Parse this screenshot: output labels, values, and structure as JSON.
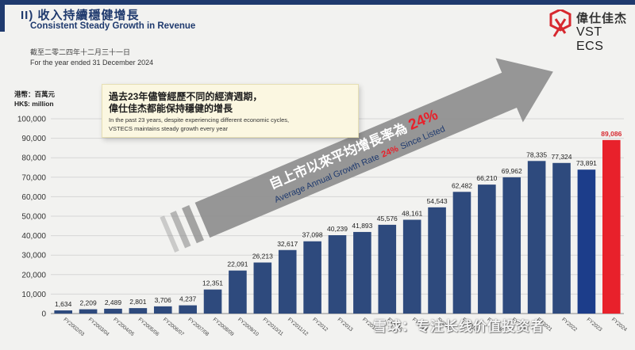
{
  "header": {
    "title_zh": "II) 收入持續穩健增長",
    "title_en": "Consistent Steady Growth in Revenue",
    "period_zh": "截至二零二四年十二月三十一日",
    "period_en": "For the year ended 31 December 2024",
    "unit_zh": "港幣：百萬元",
    "unit_en": "HK$: million"
  },
  "logo": {
    "name_zh": "偉仕佳杰",
    "name_en": "VST ECS"
  },
  "callout": {
    "zh_line1": "過去23年儘管經歷不同的經濟週期，",
    "zh_line2": "偉仕佳杰都能保持穩健的增長",
    "en_line1": "In the past 23 years, despite experiencing different economic cycles,",
    "en_line2": "VSTECS maintains steady growth every year"
  },
  "arrow": {
    "zh_prefix": "自上市以來平均增長率為",
    "zh_rate": "24%",
    "en_prefix": "Average Annual Growth Rate",
    "en_rate": "24%",
    "en_suffix": "Since Listed"
  },
  "watermark": "雪球：专注长线价值投资者",
  "colors": {
    "bar": "#2e4a7d",
    "highlight": "#1c3d8a",
    "latest": "#e8212b",
    "latest_label": "#d7282f",
    "rate": "#e8212b"
  },
  "chart_data": {
    "type": "bar",
    "ylim": [
      0,
      100000
    ],
    "yticks": [
      "0",
      "10,000",
      "20,000",
      "30,000",
      "40,000",
      "50,000",
      "60,000",
      "70,000",
      "80,000",
      "90,000",
      "100,000"
    ],
    "categories": [
      "FY2002/03",
      "FY2003/04",
      "FY2004/05",
      "FY2005/06",
      "FY2006/07",
      "FY2007/08",
      "FY2008/09",
      "FY2009/10",
      "FY2010/11",
      "FY2011/12",
      "FY2012",
      "FY2013",
      "FY2014",
      "FY2015",
      "FY2016",
      "FY2017",
      "FY2018",
      "FY2019",
      "FY2020",
      "FY2021",
      "FY2022",
      "FY2023",
      "FY2024"
    ],
    "values": [
      1634,
      2209,
      2489,
      2801,
      3706,
      4237,
      12351,
      22091,
      26213,
      32617,
      37098,
      40239,
      41893,
      45576,
      48161,
      54543,
      62482,
      66210,
      69962,
      78335,
      77324,
      73891,
      89086
    ],
    "value_labels": [
      "1,634",
      "2,209",
      "2,489",
      "2,801",
      "3,706",
      "4,237",
      "12,351",
      "22,091",
      "26,213",
      "32,617",
      "37,098",
      "40,239",
      "41,893",
      "45,576",
      "48,161",
      "54,543",
      "62,482",
      "66,210",
      "69,962",
      "78,335",
      "77,324",
      "73,891",
      "89,086"
    ],
    "grid": true
  }
}
